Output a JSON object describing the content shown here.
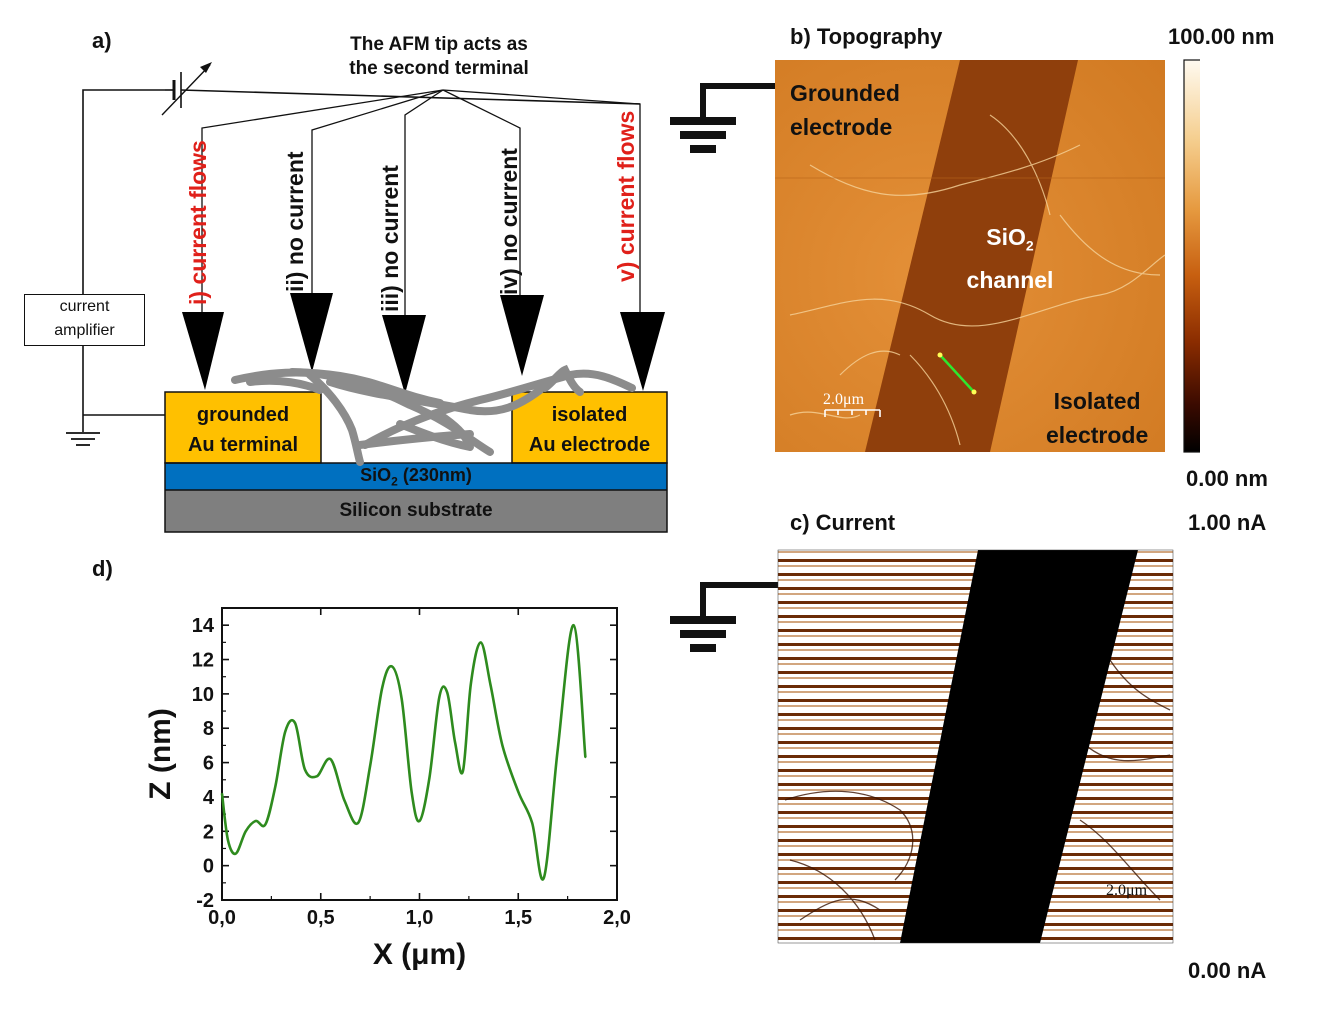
{
  "panels": {
    "a": {
      "label": "a)",
      "tip_caption_line1": "The AFM tip acts as",
      "tip_caption_line2": "the second terminal",
      "amplifier_line1": "current",
      "amplifier_line2": "amplifier",
      "tips": [
        {
          "text": "i) current flows",
          "color": "#e0201a"
        },
        {
          "text": "ii) no current",
          "color": "#111111"
        },
        {
          "text": "iii) no current",
          "color": "#111111"
        },
        {
          "text": "iv) no current",
          "color": "#111111"
        },
        {
          "text": "v) current flows",
          "color": "#e0201a"
        }
      ],
      "grounded_line1": "grounded",
      "grounded_line2": "Au terminal",
      "isolated_line1": "isolated",
      "isolated_line2": "Au electrode",
      "oxide_main": "SiO",
      "oxide_sub": "2",
      "oxide_rest": " (230nm)",
      "substrate": "Silicon substrate",
      "colors": {
        "gold": "#ffc000",
        "oxide": "#0070c0",
        "substrate": "#7f7f7f",
        "wire": "#8c8c8c"
      }
    },
    "b": {
      "label": "b) Topography",
      "colorbar_max": "100.00 nm",
      "colorbar_min": "0.00 nm",
      "grounded_line1": "Grounded",
      "grounded_line2": "electrode",
      "channel_main": "SiO",
      "channel_sub": "2",
      "channel_line2": "channel",
      "isolated_line1": "Isolated",
      "isolated_line2": "electrode",
      "scale_bar": "2.0μm"
    },
    "c": {
      "label": "c) Current",
      "colorbar_max": "1.00 nA",
      "colorbar_min": "0.00 nA",
      "scale_bar": "2.0μm"
    },
    "d": {
      "label": "d)"
    }
  },
  "chart_data": {
    "type": "line",
    "title": "",
    "xlabel": "X (μm)",
    "ylabel": "Z (nm)",
    "xlim": [
      0,
      2.0
    ],
    "ylim": [
      -2,
      15
    ],
    "x_ticks": [
      "0,0",
      "0,5",
      "1,0",
      "1,5",
      "2,0"
    ],
    "y_ticks": [
      "-2",
      "0",
      "2",
      "4",
      "6",
      "8",
      "10",
      "12",
      "14"
    ],
    "line_color": "#2e8b1e",
    "x": [
      0.0,
      0.03,
      0.07,
      0.12,
      0.17,
      0.22,
      0.27,
      0.32,
      0.37,
      0.42,
      0.48,
      0.55,
      0.62,
      0.69,
      0.75,
      0.81,
      0.86,
      0.91,
      0.96,
      1.0,
      1.05,
      1.1,
      1.14,
      1.18,
      1.22,
      1.26,
      1.31,
      1.36,
      1.42,
      1.5,
      1.57,
      1.63,
      1.7,
      1.78,
      1.84
    ],
    "y": [
      4.2,
      1.5,
      0.7,
      2.0,
      2.6,
      2.4,
      4.6,
      7.8,
      8.3,
      5.6,
      5.2,
      6.2,
      3.8,
      2.5,
      5.8,
      10.3,
      11.6,
      9.7,
      4.3,
      2.6,
      5.1,
      9.8,
      10.1,
      7.2,
      5.5,
      10.6,
      13.0,
      10.5,
      7.0,
      4.3,
      2.5,
      -0.7,
      6.8,
      14.0,
      6.3
    ]
  }
}
